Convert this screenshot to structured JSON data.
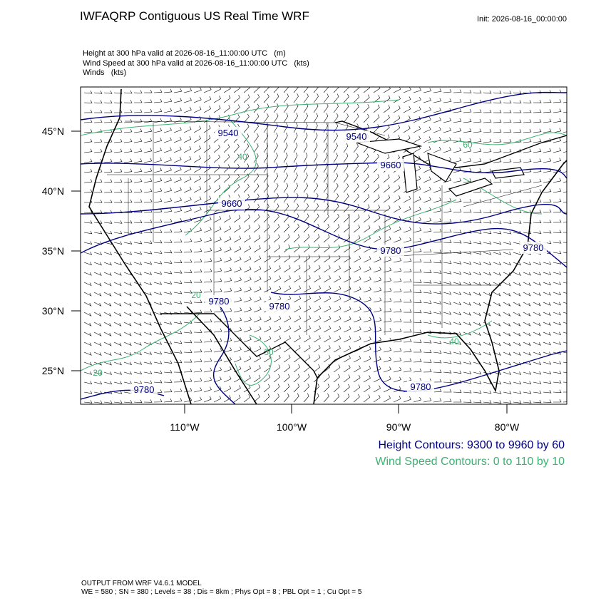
{
  "header": {
    "title": "IWFAQRP Contiguous US Real Time WRF",
    "init": "Init: 2026-08-16_00:00:00"
  },
  "fields": [
    "Height at 300 hPa valid at 2026-08-16_11:00:00 UTC   (m)",
    "Wind Speed at 300 hPa valid at 2026-08-16_11:00:00 UTC   (kts)",
    "Winds   (kts)"
  ],
  "map": {
    "lat_labels": [
      "45°N",
      "40°N",
      "35°N",
      "30°N",
      "25°N"
    ],
    "lon_labels": [
      "110°W",
      "100°W",
      "90°W",
      "80°W"
    ],
    "height_labels": [
      "9540",
      "9540",
      "9660",
      "9660",
      "9780",
      "9780",
      "9780",
      "9780",
      "9780",
      "9780"
    ],
    "speed_labels": [
      "20",
      "30",
      "60",
      "40",
      "40",
      "20"
    ]
  },
  "legend": {
    "height": "Height Contours: 9300 to 9960 by 60",
    "speed": "Wind Speed Contours: 0 to 110 by 10"
  },
  "footer": {
    "model": "OUTPUT FROM WRF V4.6.1 MODEL",
    "settings": "WE = 580 ; SN = 380 ; Levels = 38 ; Dis = 8km ; Phys Opt = 8 ; PBL Opt = 1 ; Cu Opt = 5"
  }
}
